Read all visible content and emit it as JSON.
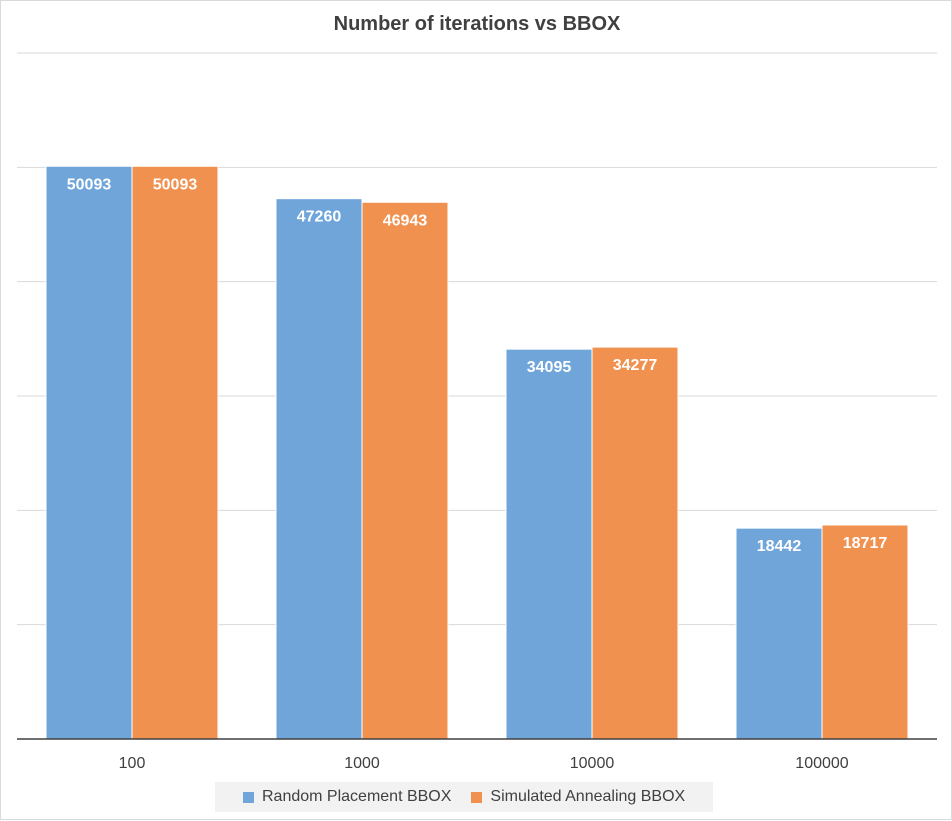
{
  "chart_data": {
    "type": "bar",
    "title": "Number of iterations vs BBOX",
    "xlabel": "",
    "ylabel": "",
    "categories": [
      "100",
      "1000",
      "10000",
      "100000"
    ],
    "series": [
      {
        "name": "Random Placement BBOX",
        "values": [
          50093,
          47260,
          34095,
          18442
        ],
        "color": "#70a5da"
      },
      {
        "name": "Simulated Annealing BBOX",
        "values": [
          50093,
          46943,
          34277,
          18717
        ],
        "color": "#f0914f"
      }
    ],
    "ylim": [
      0,
      60000
    ],
    "ytick_step": 10000,
    "ytick_labels_visible": false,
    "data_labels": true,
    "grid": true,
    "legend_position": "bottom"
  }
}
